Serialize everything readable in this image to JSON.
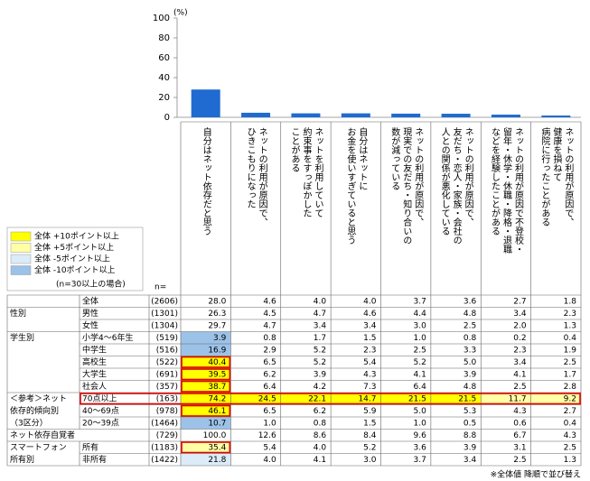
{
  "chart": {
    "type": "bar",
    "unit": "(%)",
    "ylim": [
      0,
      100
    ],
    "yticks": [
      0,
      20,
      40,
      60,
      80,
      100
    ],
    "color": "#1f6bd1"
  },
  "header": {
    "n_label": "n=",
    "columns": [
      {
        "lines": [
          "自分はネット依存だと思う"
        ]
      },
      {
        "lines": [
          "ネットの利用が原因で、",
          "ひきこもりになった"
        ]
      },
      {
        "lines": [
          "ネットを利用していて",
          "約束事をすっぽかした",
          "ことがある"
        ]
      },
      {
        "lines": [
          "自分はネットに",
          "お金を使いすぎていると思う"
        ]
      },
      {
        "lines": [
          "ネットの利用が原因で、",
          "現実での友だち・知り合いの",
          "数が減っている"
        ]
      },
      {
        "lines": [
          "ネットの利用が原因で、",
          "友だち・恋人・家族・会社の",
          "人との関係が悪化している"
        ]
      },
      {
        "lines": [
          "ネットの利用が原因で不登校・",
          "留年・休学・休職・降格・退職",
          "などを経験したことがある"
        ]
      },
      {
        "lines": [
          "ネットの利用が原因で、",
          "健康を損ねて",
          "病院に行ったことがある"
        ]
      }
    ]
  },
  "legend": {
    "items": [
      {
        "label": "全体 +10ポイント以上",
        "color": "#ffff00"
      },
      {
        "label": "全体 +5ポイント以上",
        "color": "#ffffa6"
      },
      {
        "label": "全体 -5ポイント以上",
        "color": "#dcebf8"
      },
      {
        "label": "全体 -10ポイント以上",
        "color": "#9cc2e8"
      }
    ],
    "note": "(n=30以上の場合)"
  },
  "table": {
    "sections": [
      {
        "rows": [
          {
            "label": "全体",
            "n": "(2606)",
            "values": [
              28,
              4.6,
              4,
              4,
              3.7,
              3.6,
              2.7,
              1.8
            ],
            "value_labels": [
              "28.0",
              "4.6",
              "4.0",
              "4.0",
              "3.7",
              "3.6",
              "2.7",
              "1.8"
            ],
            "levels": [
              null,
              null,
              null,
              null,
              null,
              null,
              null,
              null
            ]
          }
        ]
      },
      {
        "group": [
          "性別"
        ],
        "rows": [
          {
            "label": "男性",
            "n": "(1301)",
            "values": [
              26.3,
              4.5,
              4.7,
              4.6,
              4.4,
              4.8,
              3.4,
              2.3
            ],
            "value_labels": [
              "26.3",
              "4.5",
              "4.7",
              "4.6",
              "4.4",
              "4.8",
              "3.4",
              "2.3"
            ],
            "levels": [
              null,
              null,
              null,
              null,
              null,
              null,
              null,
              null
            ]
          },
          {
            "label": "女性",
            "n": "(1304)",
            "values": [
              29.7,
              4.7,
              3.4,
              3.4,
              3,
              2.5,
              2,
              1.3
            ],
            "value_labels": [
              "29.7",
              "4.7",
              "3.4",
              "3.4",
              "3.0",
              "2.5",
              "2.0",
              "1.3"
            ],
            "levels": [
              null,
              null,
              null,
              null,
              null,
              null,
              null,
              null
            ]
          }
        ]
      },
      {
        "group": [
          "学生別"
        ],
        "rows": [
          {
            "label": "小学4～6年生",
            "n": "(519)",
            "values": [
              3.9,
              0.8,
              1.7,
              1.5,
              1,
              0.8,
              0.2,
              0.4
            ],
            "value_labels": [
              "3.9",
              "0.8",
              "1.7",
              "1.5",
              "1.0",
              "0.8",
              "0.2",
              "0.4"
            ],
            "levels": [
              3,
              null,
              null,
              null,
              null,
              null,
              null,
              null
            ]
          },
          {
            "label": "中学生",
            "n": "(516)",
            "values": [
              16.9,
              2.9,
              5.2,
              2.3,
              2.5,
              3.3,
              2.3,
              1.9
            ],
            "value_labels": [
              "16.9",
              "2.9",
              "5.2",
              "2.3",
              "2.5",
              "3.3",
              "2.3",
              "1.9"
            ],
            "levels": [
              3,
              null,
              null,
              null,
              null,
              null,
              null,
              null
            ]
          },
          {
            "label": "高校生",
            "n": "(522)",
            "values": [
              40.4,
              6.5,
              5.2,
              5.4,
              5.2,
              5,
              3.4,
              2.5
            ],
            "value_labels": [
              "40.4",
              "6.5",
              "5.2",
              "5.4",
              "5.2",
              "5.0",
              "3.4",
              "2.5"
            ],
            "levels": [
              0,
              null,
              null,
              null,
              null,
              null,
              null,
              null
            ]
          },
          {
            "label": "大学生",
            "n": "(691)",
            "values": [
              39.5,
              6.2,
              3.9,
              4.3,
              4.1,
              3.9,
              4.1,
              1.7
            ],
            "value_labels": [
              "39.5",
              "6.2",
              "3.9",
              "4.3",
              "4.1",
              "3.9",
              "4.1",
              "1.7"
            ],
            "levels": [
              0,
              null,
              null,
              null,
              null,
              null,
              null,
              null
            ]
          },
          {
            "label": "社会人",
            "n": "(357)",
            "values": [
              38.7,
              6.4,
              4.2,
              7.3,
              6.4,
              4.8,
              2.5,
              2.8
            ],
            "value_labels": [
              "38.7",
              "6.4",
              "4.2",
              "7.3",
              "6.4",
              "4.8",
              "2.5",
              "2.8"
            ],
            "levels": [
              0,
              null,
              null,
              null,
              null,
              null,
              null,
              null
            ]
          }
        ]
      },
      {
        "group": [
          "＜参考＞ネット",
          "依存的傾向別",
          "（3区分）"
        ],
        "rows": [
          {
            "label": "70点以上",
            "n": "(163)",
            "values": [
              74.2,
              24.5,
              22.1,
              14.7,
              21.5,
              21.5,
              11.7,
              9.2
            ],
            "value_labels": [
              "74.2",
              "24.5",
              "22.1",
              "14.7",
              "21.5",
              "21.5",
              "11.7",
              "9.2"
            ],
            "levels": [
              0,
              0,
              0,
              0,
              0,
              0,
              1,
              1
            ]
          },
          {
            "label": "40～69点",
            "n": "(978)",
            "values": [
              46.1,
              6.5,
              6.2,
              5.9,
              5,
              5.3,
              4.3,
              2.7
            ],
            "value_labels": [
              "46.1",
              "6.5",
              "6.2",
              "5.9",
              "5.0",
              "5.3",
              "4.3",
              "2.7"
            ],
            "levels": [
              0,
              null,
              null,
              null,
              null,
              null,
              null,
              null
            ]
          },
          {
            "label": "20～39点",
            "n": "(1464)",
            "values": [
              10.7,
              1,
              0.8,
              1.5,
              1,
              0.5,
              0.6,
              0.4
            ],
            "value_labels": [
              "10.7",
              "1.0",
              "0.8",
              "1.5",
              "1.0",
              "0.5",
              "0.6",
              "0.4"
            ],
            "levels": [
              3,
              null,
              null,
              null,
              null,
              null,
              null,
              null
            ]
          }
        ]
      },
      {
        "rows": [
          {
            "label": "ネット依存自覚者",
            "span": true,
            "n": "(729)",
            "values": [
              100,
              12.6,
              8.6,
              8.4,
              9.6,
              8.8,
              6.7,
              4.3
            ],
            "value_labels": [
              "100.0",
              "12.6",
              "8.6",
              "8.4",
              "9.6",
              "8.8",
              "6.7",
              "4.3"
            ],
            "levels": [
              null,
              null,
              null,
              null,
              null,
              null,
              null,
              null
            ]
          }
        ]
      },
      {
        "group": [
          "スマートフォン",
          "所有別"
        ],
        "rows": [
          {
            "label": "所有",
            "n": "(1183)",
            "values": [
              35.4,
              5.4,
              4,
              5.2,
              3.6,
              3.9,
              3.1,
              2.5
            ],
            "value_labels": [
              "35.4",
              "5.4",
              "4.0",
              "5.2",
              "3.6",
              "3.9",
              "3.1",
              "2.5"
            ],
            "levels": [
              1,
              null,
              null,
              null,
              null,
              null,
              null,
              null
            ]
          },
          {
            "label": "非所有",
            "n": "(1422)",
            "values": [
              21.8,
              4,
              4.1,
              3,
              3.7,
              3.4,
              2.5,
              1.3
            ],
            "value_labels": [
              "21.8",
              "4.0",
              "4.1",
              "3.0",
              "3.7",
              "3.4",
              "2.5",
              "1.3"
            ],
            "levels": [
              2,
              null,
              null,
              null,
              null,
              null,
              null,
              null
            ]
          }
        ]
      }
    ]
  },
  "footnote": "※全体値 降順で並び替え"
}
